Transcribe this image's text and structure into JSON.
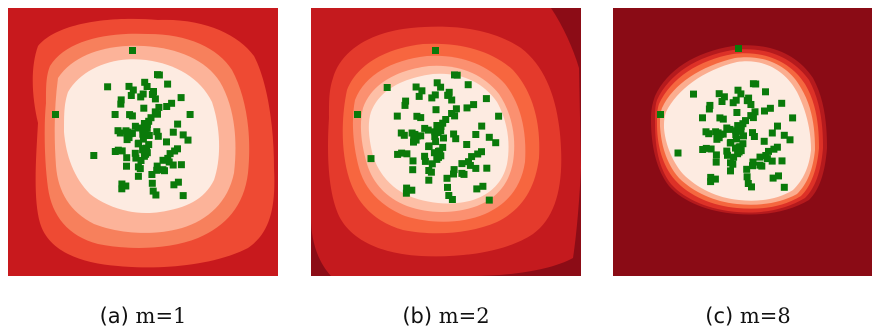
{
  "panels": [
    {
      "tag": "(a)",
      "label": "m=1"
    },
    {
      "tag": "(b)",
      "label": "m=2"
    },
    {
      "tag": "(c)",
      "label": "m=8"
    }
  ],
  "colors": {
    "point": "#0a7a0a",
    "levels_a": [
      "#c8191d",
      "#ee4a33",
      "#f7805c",
      "#fcb399",
      "#fdebe1"
    ],
    "levels_b": [
      "#8c0c16",
      "#c41a1e",
      "#e43a2c",
      "#f7663f",
      "#fb9070",
      "#fdbfa6",
      "#fdebe1"
    ],
    "levels_c": [
      "#8a0b15",
      "#b51a1d",
      "#dd3127",
      "#f5673f",
      "#fbad8f",
      "#fdebe1"
    ]
  }
}
